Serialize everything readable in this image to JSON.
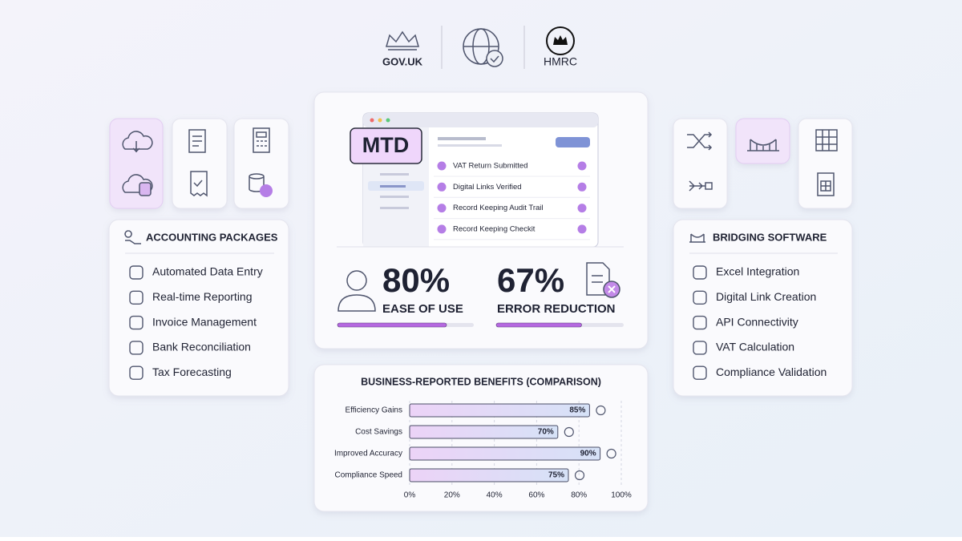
{
  "logos": [
    "GOV.UK",
    "HMRC"
  ],
  "mockup": {
    "badge": "MTD",
    "checklist": [
      "VAT Return Submitted",
      "Digital Links Verified",
      "Record Keeping Audit Trail",
      "Record Keeping Checkit"
    ]
  },
  "stats": [
    {
      "value": 80,
      "value_label": "80%",
      "label": "EASE OF USE"
    },
    {
      "value": 67,
      "value_label": "67%",
      "label": "ERROR REDUCTION"
    }
  ],
  "accounting": {
    "title": "ACCOUNTING PACKAGES",
    "items": [
      "Automated Data Entry",
      "Real-time Reporting",
      "Invoice Management",
      "Bank Reconciliation",
      "Tax Forecasting"
    ]
  },
  "bridging": {
    "title": "BRIDGING SOFTWARE",
    "items": [
      "Excel Integration",
      "Digital Link Creation",
      "API Connectivity",
      "VAT Calculation",
      "Compliance Validation"
    ]
  },
  "chart_data": {
    "type": "bar",
    "orientation": "horizontal",
    "title": "BUSINESS-REPORTED BENEFITS (COMPARISON)",
    "categories": [
      "Efficiency Gains",
      "Cost Savings",
      "Improved Accuracy",
      "Compliance Speed"
    ],
    "values": [
      85,
      70,
      90,
      75
    ],
    "value_labels": [
      "85%",
      "70%",
      "90%",
      "75%"
    ],
    "xlim": [
      0,
      100
    ],
    "xticks": [
      {
        "value": 0,
        "label": "0%"
      },
      {
        "value": 20,
        "label": "20%"
      },
      {
        "value": 40,
        "label": "40%"
      },
      {
        "value": 60,
        "label": "60%"
      },
      {
        "value": 80,
        "label": "80%"
      },
      {
        "value": 100,
        "label": "100%"
      }
    ],
    "grid": true
  }
}
